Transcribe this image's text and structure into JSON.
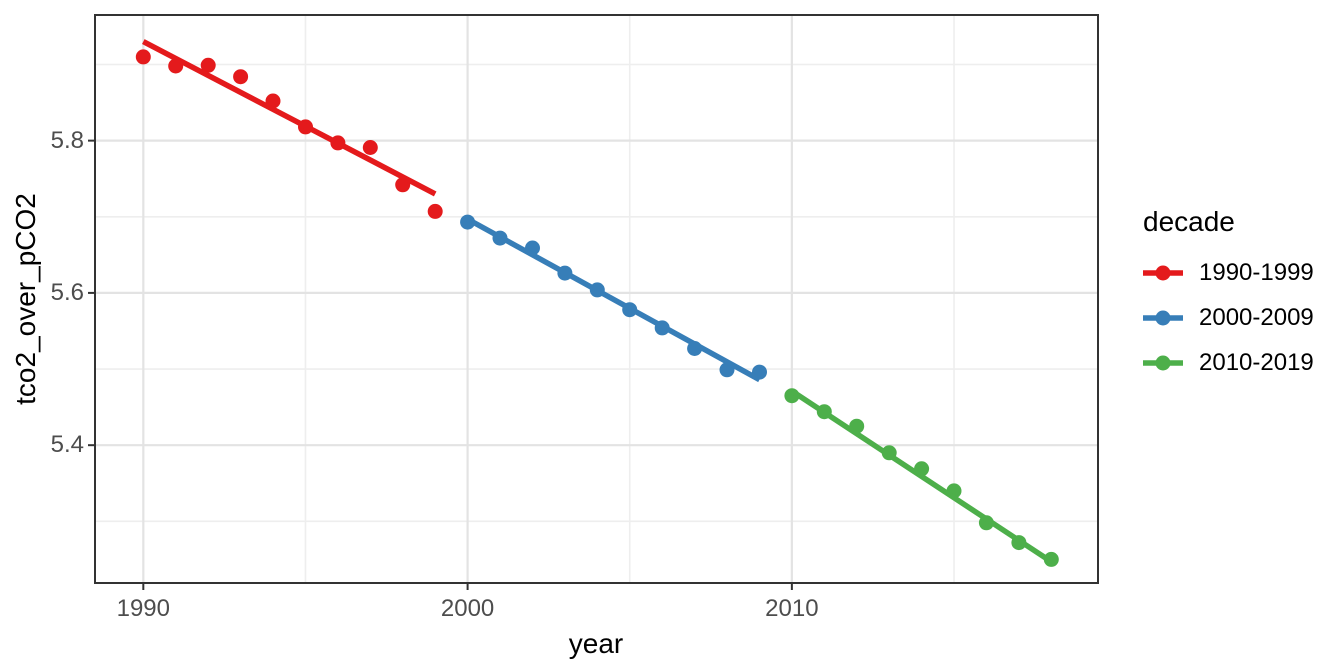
{
  "style": {
    "background": "#ffffff",
    "panel_bg": "#ffffff",
    "panel_border": "#333333",
    "grid_major": "#e3e3e3",
    "grid_minor": "#eeeeee",
    "tick_color": "#333333",
    "axis_text_color": "#4d4d4d",
    "axis_title_color": "#000000"
  },
  "chart_data": {
    "type": "scatter",
    "title": "",
    "xlabel": "year",
    "ylabel": "tco2_over_pCO2",
    "xlim": [
      1988.51,
      2019.44
    ],
    "ylim": [
      5.219,
      5.965
    ],
    "x_ticks": [
      1990,
      2000,
      2010
    ],
    "x_tick_labels": [
      "1990",
      "2000",
      "2010"
    ],
    "y_ticks": [
      5.4,
      5.6,
      5.8
    ],
    "y_tick_labels": [
      "5.4",
      "5.6",
      "5.8"
    ],
    "x_minor": [
      1995,
      2005,
      2015
    ],
    "y_minor": [
      5.3,
      5.5,
      5.7,
      5.9
    ],
    "grid": true,
    "legend": {
      "title": "decade",
      "position": "right"
    },
    "series": [
      {
        "name": "1990-1999",
        "color": "#E41A1C",
        "x": [
          1990,
          1991,
          1992,
          1993,
          1994,
          1995,
          1996,
          1997,
          1998,
          1999
        ],
        "y": [
          5.91,
          5.898,
          5.899,
          5.884,
          5.852,
          5.818,
          5.797,
          5.791,
          5.742,
          5.707
        ],
        "trend": {
          "x": [
            1990,
            1999
          ],
          "y": [
            5.93,
            5.73
          ]
        }
      },
      {
        "name": "2000-2009",
        "color": "#377EB8",
        "x": [
          2000,
          2001,
          2002,
          2003,
          2004,
          2005,
          2006,
          2007,
          2008,
          2009
        ],
        "y": [
          5.693,
          5.672,
          5.659,
          5.626,
          5.604,
          5.578,
          5.554,
          5.527,
          5.499,
          5.496
        ],
        "trend": {
          "x": [
            2000,
            2009
          ],
          "y": [
            5.697,
            5.486
          ]
        }
      },
      {
        "name": "2010-2019",
        "color": "#4DAF4A",
        "x": [
          2010,
          2011,
          2012,
          2013,
          2014,
          2015,
          2016,
          2017,
          2018
        ],
        "y": [
          5.465,
          5.444,
          5.425,
          5.39,
          5.369,
          5.34,
          5.298,
          5.272,
          5.25
        ],
        "trend": {
          "x": [
            2010,
            2018
          ],
          "y": [
            5.471,
            5.247
          ]
        }
      }
    ]
  }
}
